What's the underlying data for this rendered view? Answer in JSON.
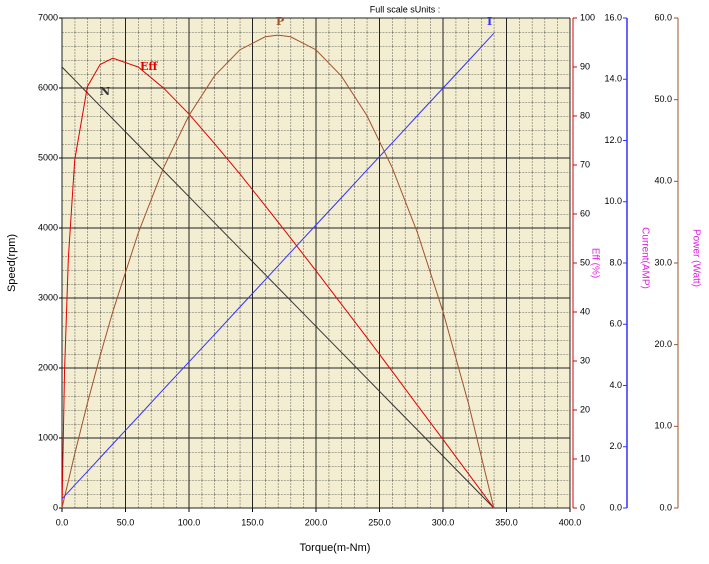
{
  "chart_data": {
    "type": "line",
    "title": "Full scale sUnits :",
    "xlabel": "Torque(m-Nm)",
    "ylabel": "Speed(rpm)",
    "y2label": "Eff (%)",
    "y3label": "Current(AMP)",
    "y4label": "Power (Watt)",
    "x": [
      0,
      2,
      5,
      10,
      20,
      30,
      40,
      60,
      80,
      100,
      120,
      140,
      160,
      170,
      180,
      200,
      220,
      240,
      260,
      280,
      300,
      320,
      340
    ],
    "series": [
      {
        "name": "N",
        "color": "#333333",
        "axis": "y",
        "values": [
          6300,
          6263,
          6207,
          6115,
          5929,
          5744,
          5559,
          5188,
          4818,
          4447,
          4076,
          3706,
          3335,
          3150,
          2965,
          2594,
          2224,
          1853,
          1482,
          1112,
          741,
          371,
          0
        ]
      },
      {
        "name": "Eff",
        "color": "#e00000",
        "axis": "y2",
        "values": [
          0,
          28,
          51,
          71,
          86,
          90.5,
          91.8,
          90.0,
          85.7,
          80.4,
          74.4,
          68.2,
          61.7,
          58.4,
          55.1,
          48.4,
          41.6,
          34.8,
          27.9,
          20.9,
          14.0,
          7.0,
          0
        ]
      },
      {
        "name": "P",
        "color": "#a0522d",
        "axis": "y4",
        "values": [
          0,
          1.35,
          3.31,
          6.61,
          12.82,
          18.63,
          24.04,
          33.66,
          41.67,
          48.08,
          52.89,
          56.1,
          57.7,
          57.9,
          57.7,
          56.1,
          52.89,
          48.08,
          41.67,
          33.66,
          24.04,
          12.82,
          0
        ]
      },
      {
        "name": "I",
        "color": "#3333ff",
        "axis": "y3",
        "values": [
          0.3,
          0.39,
          0.52,
          0.75,
          1.19,
          1.64,
          2.09,
          2.98,
          3.88,
          4.77,
          5.66,
          6.56,
          7.45,
          7.9,
          8.35,
          9.24,
          10.13,
          11.03,
          11.92,
          12.82,
          13.71,
          14.6,
          15.5
        ]
      }
    ],
    "xlim": [
      0,
      400
    ],
    "xticks": [
      {
        "value": 0,
        "label": "0.0"
      },
      {
        "value": 50,
        "label": "50.0"
      },
      {
        "value": 100,
        "label": "100.0"
      },
      {
        "value": 150,
        "label": "150.0"
      },
      {
        "value": 200,
        "label": "200.0"
      },
      {
        "value": 250,
        "label": "250.0"
      },
      {
        "value": 300,
        "label": "300.0"
      },
      {
        "value": 350,
        "label": "350.0"
      },
      {
        "value": 400,
        "label": "400.0"
      }
    ],
    "ylim": [
      0,
      7000
    ],
    "yticks": [
      0,
      1000,
      2000,
      3000,
      4000,
      5000,
      6000,
      7000
    ],
    "y2lim": [
      0,
      100
    ],
    "y2ticks": [
      0,
      10,
      20,
      30,
      40,
      50,
      60,
      70,
      80,
      90,
      100
    ],
    "y3lim": [
      0,
      16
    ],
    "y3ticks": [
      {
        "value": 0,
        "label": "0.0"
      },
      {
        "value": 2,
        "label": "2.0"
      },
      {
        "value": 4,
        "label": "4.0"
      },
      {
        "value": 6,
        "label": "6.0"
      },
      {
        "value": 8,
        "label": "8.0"
      },
      {
        "value": 10,
        "label": "10.0"
      },
      {
        "value": 12,
        "label": "12.0"
      },
      {
        "value": 14,
        "label": "14.0"
      },
      {
        "value": 16,
        "label": "16.0"
      }
    ],
    "y4lim": [
      0,
      60
    ],
    "y4ticks": [
      {
        "value": 0,
        "label": "0.0"
      },
      {
        "value": 10,
        "label": "10.0"
      },
      {
        "value": 20,
        "label": "20.0"
      },
      {
        "value": 30,
        "label": "30.0"
      },
      {
        "value": 40,
        "label": "40.0"
      },
      {
        "value": 50,
        "label": "50.0"
      },
      {
        "value": 60,
        "label": "60.0"
      }
    ],
    "grid": true
  }
}
